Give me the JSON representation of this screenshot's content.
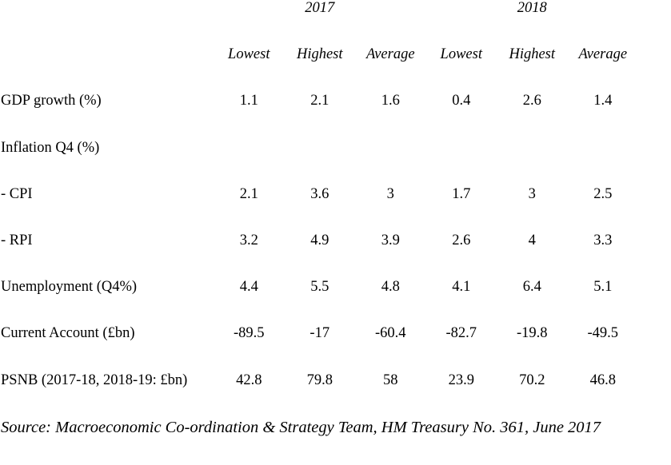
{
  "table": {
    "year_groups": [
      {
        "label": "2017"
      },
      {
        "label": "2018"
      }
    ],
    "column_headers": [
      "Lowest",
      "Highest",
      "Average",
      "Lowest",
      "Highest",
      "Average"
    ],
    "rows": [
      {
        "label": "GDP growth (%)",
        "values": [
          "1.1",
          "2.1",
          "1.6",
          "0.4",
          "2.6",
          "1.4"
        ]
      },
      {
        "label": "Inflation Q4 (%)",
        "values": [
          "",
          "",
          "",
          "",
          "",
          ""
        ]
      },
      {
        "label": "- CPI",
        "values": [
          "2.1",
          "3.6",
          "3",
          "1.7",
          "3",
          "2.5"
        ]
      },
      {
        "label": "- RPI",
        "values": [
          "3.2",
          "4.9",
          "3.9",
          "2.6",
          "4",
          "3.3"
        ]
      },
      {
        "label": "Unemployment (Q4%)",
        "values": [
          "4.4",
          "5.5",
          "4.8",
          "4.1",
          "6.4",
          "5.1"
        ]
      },
      {
        "label": "Current Account (£bn)",
        "values": [
          "-89.5",
          "-17",
          "-60.4",
          "-82.7",
          "-19.8",
          "-49.5"
        ]
      },
      {
        "label": "PSNB (2017-18, 2018-19: £bn)",
        "values": [
          "42.8",
          "79.8",
          "58",
          "23.9",
          "70.2",
          "46.8"
        ]
      }
    ],
    "source": "Source: Macroeconomic Co-ordination & Strategy Team, HM Treasury No. 361, June 2017",
    "text_color": "#000000",
    "background_color": "#ffffff"
  }
}
